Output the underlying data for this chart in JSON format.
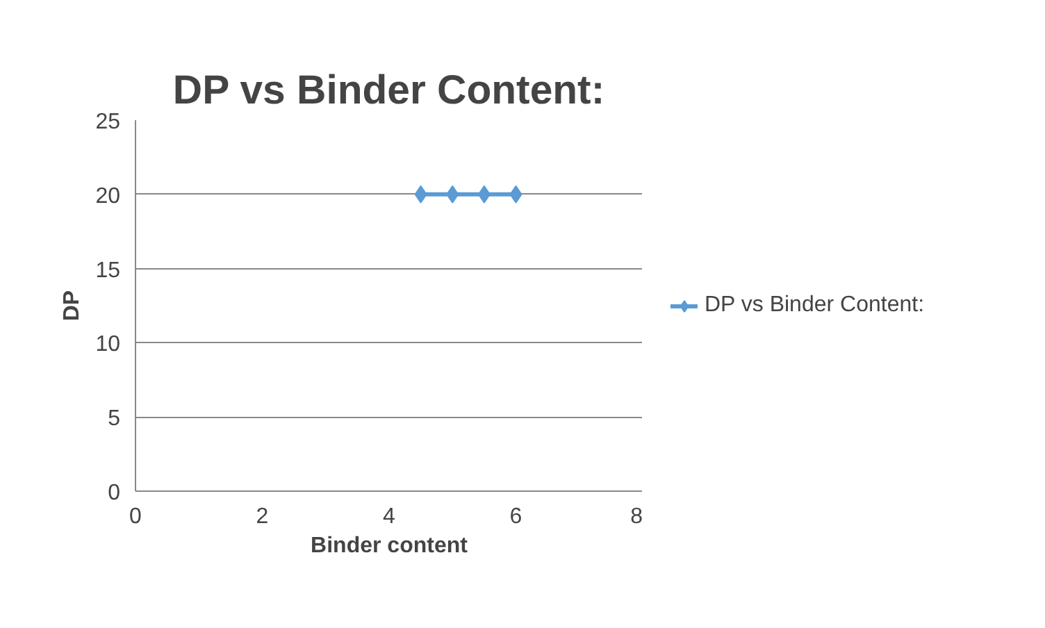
{
  "chart_data": {
    "type": "line",
    "title": "DP vs Binder Content:",
    "xlabel": "Binder content",
    "ylabel": "DP",
    "x": [
      4.5,
      5,
      5.5,
      6
    ],
    "series": [
      {
        "name": "DP vs Binder Content:",
        "color": "#5b9bd5",
        "values": [
          20,
          20,
          20,
          20
        ]
      }
    ],
    "xlim": [
      0,
      8
    ],
    "xticks": [
      0,
      2,
      4,
      6,
      8
    ],
    "ylim": [
      0,
      25
    ],
    "yticks": [
      0,
      5,
      10,
      15,
      20,
      25
    ],
    "grid": "y",
    "legend": "right",
    "marker": "diamond",
    "line_style": "solid"
  }
}
